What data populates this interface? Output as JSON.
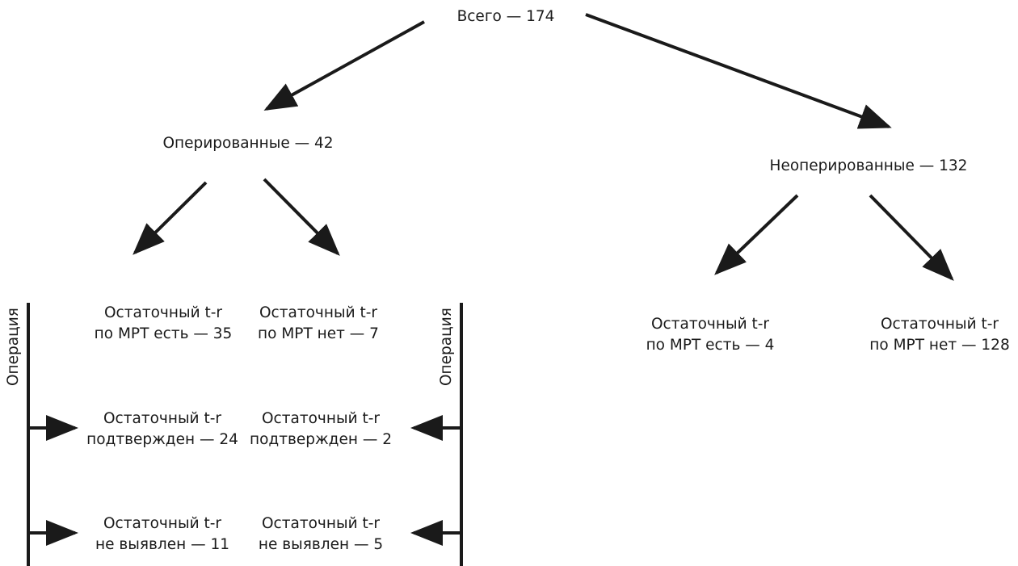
{
  "colors": {
    "line": "#1a1a1a",
    "text": "#1a1a1a",
    "background": "#ffffff"
  },
  "nodes": {
    "root": "Всего — 174",
    "operated": "Оперированные — 42",
    "non_operated": "Неоперированные — 132",
    "op_residual_yes": [
      "Остаточный t-r",
      "по МРТ есть — 35"
    ],
    "op_residual_no": [
      "Остаточный t-r",
      "по МРТ нет — 7"
    ],
    "nonop_residual_yes": [
      "Остаточный t-r",
      "по МРТ есть — 4"
    ],
    "nonop_residual_no": [
      "Остаточный t-r",
      "по МРТ нет — 128"
    ],
    "yes_confirmed": [
      "Остаточный t-r",
      "подтвержден — 24"
    ],
    "no_confirmed": [
      "Остаточный t-r",
      "подтвержден — 2"
    ],
    "yes_not_found": [
      "Остаточный t-r",
      "не выявлен — 11"
    ],
    "no_not_found": [
      "Остаточный t-r",
      "не выявлен — 5"
    ]
  },
  "side_labels": {
    "left": "Операция",
    "right": "Операция"
  }
}
